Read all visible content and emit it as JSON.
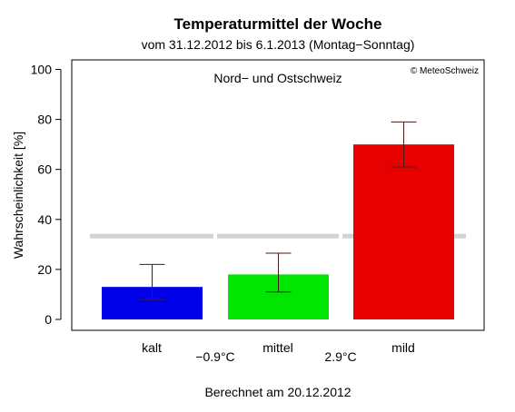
{
  "chart_data": {
    "type": "bar",
    "title": "Temperaturmittel der Woche",
    "subtitle": "vom 31.12.2012 bis 6.1.2013 (Montag−Sonntag)",
    "region_label": "Nord− und Ostschweiz",
    "copyright": "© MeteoSchweiz",
    "ylabel": "Wahrscheinlichkeit [%]",
    "footer": "Berechnet am 20.12.2012",
    "ylim": [
      0,
      100
    ],
    "yticks": [
      0,
      20,
      40,
      60,
      80,
      100
    ],
    "categories": [
      "kalt",
      "mittel",
      "mild"
    ],
    "thresholds": [
      "−0.9°C",
      "2.9°C"
    ],
    "values": [
      13,
      18,
      70
    ],
    "error_low": [
      8,
      11,
      61
    ],
    "error_high": [
      22,
      26.5,
      79
    ],
    "climatology": 33.3,
    "grid": false,
    "colors": {
      "bars": [
        "#0000e6",
        "#00e600",
        "#e60000"
      ],
      "errorbar": "#4a1a1a",
      "climatology_line": "#d3d3d3"
    }
  }
}
